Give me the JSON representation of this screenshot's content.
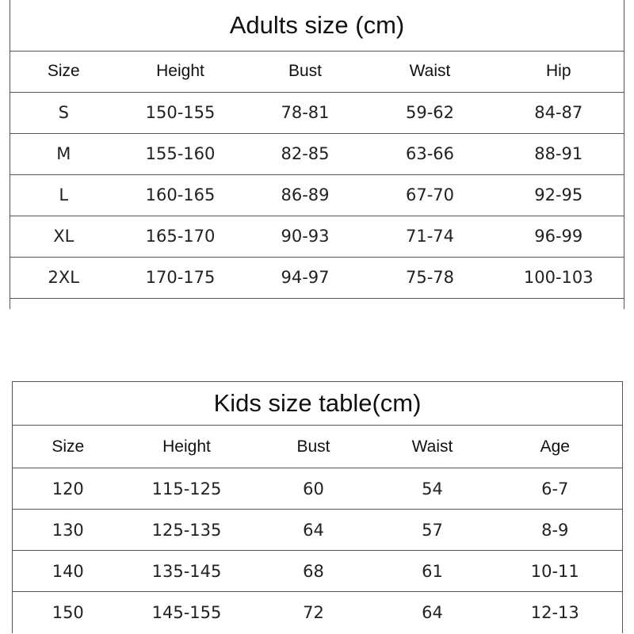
{
  "adults": {
    "title": "Adults size (cm)",
    "headers": [
      "Size",
      "Height",
      "Bust",
      "Waist",
      "Hip"
    ],
    "rows": [
      [
        "S",
        "150-155",
        "78-81",
        "59-62",
        "84-87"
      ],
      [
        "M",
        "155-160",
        "82-85",
        "63-66",
        "88-91"
      ],
      [
        "L",
        "160-165",
        "86-89",
        "67-70",
        "92-95"
      ],
      [
        "XL",
        "165-170",
        "90-93",
        "71-74",
        "96-99"
      ],
      [
        "2XL",
        "170-175",
        "94-97",
        "75-78",
        "100-103"
      ]
    ]
  },
  "kids": {
    "title": "Kids size table(cm)",
    "headers": [
      "Size",
      "Height",
      "Bust",
      "Waist",
      "Age"
    ],
    "rows": [
      [
        "120",
        "115-125",
        "60",
        "54",
        "6-7"
      ],
      [
        "130",
        "125-135",
        "64",
        "57",
        "8-9"
      ],
      [
        "140",
        "135-145",
        "68",
        "61",
        "10-11"
      ],
      [
        "150",
        "145-155",
        "72",
        "64",
        "12-13"
      ]
    ]
  }
}
